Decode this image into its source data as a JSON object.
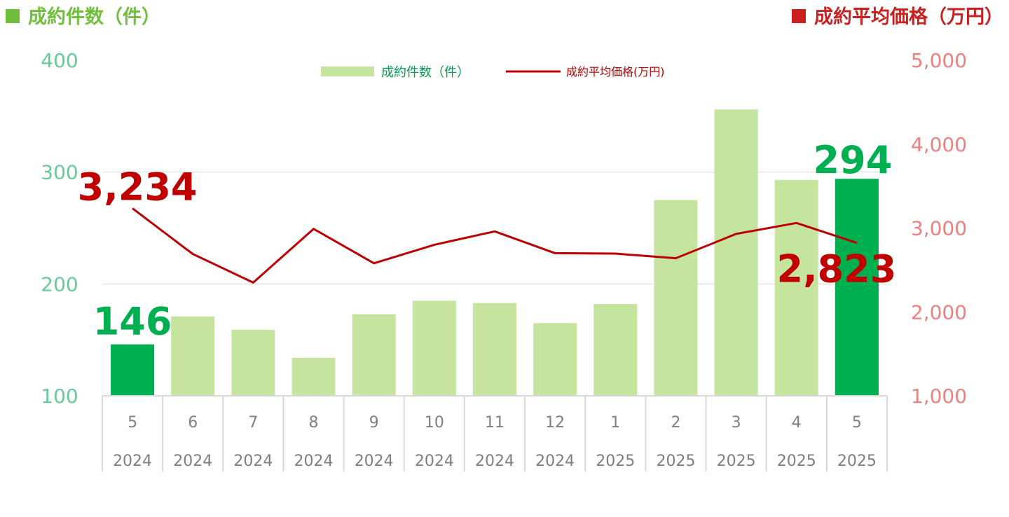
{
  "header": {
    "left_title": "成約件数（件）",
    "right_title": "成約平均価格（万円）"
  },
  "legend": {
    "bar_label": "成約件数（件）",
    "line_label": "成約平均価格(万円)"
  },
  "colors": {
    "bar_light": "#c5e59f",
    "bar_highlight": "#00b050",
    "line": "#c00000",
    "left_axis_text": "#66cc99",
    "right_axis_text": "#f08080",
    "header_left": "#6fbf3a",
    "header_right": "#cc1f1f",
    "grid": "#d9d9d9",
    "category_text": "#7f7f7f"
  },
  "chart_data": {
    "type": "bar",
    "categories": [
      [
        "5",
        "2024"
      ],
      [
        "6",
        "2024"
      ],
      [
        "7",
        "2024"
      ],
      [
        "8",
        "2024"
      ],
      [
        "9",
        "2024"
      ],
      [
        "10",
        "2024"
      ],
      [
        "11",
        "2024"
      ],
      [
        "12",
        "2024"
      ],
      [
        "1",
        "2025"
      ],
      [
        "2",
        "2025"
      ],
      [
        "3",
        "2025"
      ],
      [
        "4",
        "2025"
      ],
      [
        "5",
        "2025"
      ]
    ],
    "series": [
      {
        "name": "成約件数（件）",
        "type": "bar",
        "axis": "left",
        "values": [
          146,
          171,
          159,
          134,
          173,
          185,
          183,
          165,
          182,
          275,
          356,
          293,
          294
        ],
        "highlight": [
          true,
          false,
          false,
          false,
          false,
          false,
          false,
          false,
          false,
          false,
          false,
          false,
          true
        ]
      },
      {
        "name": "成約平均価格(万円)",
        "type": "line",
        "axis": "right",
        "values": [
          3234,
          2690,
          2350,
          2990,
          2580,
          2800,
          2960,
          2700,
          2695,
          2640,
          2930,
          3060,
          2823
        ]
      }
    ],
    "y_left": {
      "min": 100,
      "max": 400,
      "ticks": [
        "100",
        "200",
        "300",
        "400"
      ]
    },
    "y_right": {
      "min": 1000,
      "max": 5000,
      "ticks": [
        "1,000",
        "2,000",
        "3,000",
        "4,000",
        "5,000"
      ]
    },
    "annotations": [
      {
        "series": 0,
        "index": 0,
        "text": "146"
      },
      {
        "series": 0,
        "index": 12,
        "text": "294"
      },
      {
        "series": 1,
        "index": 0,
        "text": "3,234"
      },
      {
        "series": 1,
        "index": 12,
        "text": "2,823"
      }
    ],
    "grid": true,
    "legend_position": "top-center"
  }
}
